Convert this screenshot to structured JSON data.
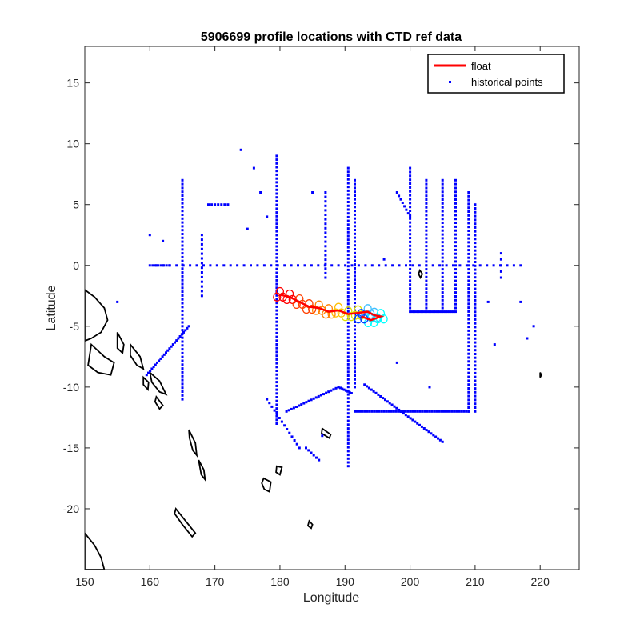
{
  "chart_data": {
    "type": "scatter",
    "title": "5906699 profile locations with CTD ref data",
    "xlabel": "Longitude",
    "ylabel": "Latitude",
    "xlim": [
      150,
      226
    ],
    "ylim": [
      -25,
      18
    ],
    "xticks": [
      150,
      160,
      170,
      180,
      190,
      200,
      210,
      220
    ],
    "yticks": [
      -20,
      -15,
      -10,
      -5,
      0,
      5,
      10,
      15
    ],
    "legend": {
      "placement": "top-right",
      "entries": [
        {
          "label": "float",
          "color": "#ff0000",
          "style": "line"
        },
        {
          "label": "historical points",
          "color": "#0000ff",
          "style": "dot"
        }
      ]
    },
    "colors": {
      "float": "#ff0000",
      "historical": "#0000ff",
      "coast": "#000000"
    },
    "series": [
      {
        "name": "float",
        "type": "line",
        "points": [
          [
            180,
            -2.4
          ],
          [
            181.5,
            -2.6
          ],
          [
            183,
            -3.0
          ],
          [
            184.5,
            -3.4
          ],
          [
            186,
            -3.5
          ],
          [
            187.5,
            -3.8
          ],
          [
            189,
            -3.7
          ],
          [
            190.5,
            -4.0
          ],
          [
            192,
            -3.9
          ],
          [
            193.5,
            -3.8
          ],
          [
            194.5,
            -4.1
          ],
          [
            195.5,
            -4.2
          ],
          [
            194,
            -4.5
          ],
          [
            192.5,
            -4.2
          ]
        ]
      },
      {
        "name": "historical points",
        "type": "scatter",
        "lines": [
          {
            "from": [
              161,
              0
            ],
            "to": [
              217,
              0
            ],
            "n": 55
          },
          {
            "from": [
              179.5,
              -13
            ],
            "to": [
              179.5,
              9
            ],
            "n": 72
          },
          {
            "from": [
              190.5,
              -16.5
            ],
            "to": [
              190.5,
              8
            ],
            "n": 80
          },
          {
            "from": [
              191.5,
              -10
            ],
            "to": [
              191.5,
              7
            ],
            "n": 55
          },
          {
            "from": [
              165,
              -11
            ],
            "to": [
              165,
              7
            ],
            "n": 58
          },
          {
            "from": [
              209,
              -12
            ],
            "to": [
              209,
              6
            ],
            "n": 58
          },
          {
            "from": [
              210,
              -12
            ],
            "to": [
              210,
              5
            ],
            "n": 55
          },
          {
            "from": [
              205,
              -3.5
            ],
            "to": [
              205,
              7
            ],
            "n": 34
          },
          {
            "from": [
              207,
              -3.5
            ],
            "to": [
              207,
              7
            ],
            "n": 34
          },
          {
            "from": [
              200,
              -3.5
            ],
            "to": [
              200,
              8
            ],
            "n": 37
          },
          {
            "from": [
              202.5,
              -3.5
            ],
            "to": [
              202.5,
              7
            ],
            "n": 34
          },
          {
            "from": [
              200,
              -3.8
            ],
            "to": [
              207,
              -3.8
            ],
            "n": 24
          },
          {
            "from": [
              191.5,
              -12
            ],
            "to": [
              209,
              -12
            ],
            "n": 48
          },
          {
            "from": [
              181,
              -12
            ],
            "to": [
              189,
              -10
            ],
            "n": 22
          },
          {
            "from": [
              189,
              -10
            ],
            "to": [
              191,
              -10.5
            ],
            "n": 8
          },
          {
            "from": [
              193,
              -9.8
            ],
            "to": [
              205,
              -14.5
            ],
            "n": 35
          },
          {
            "from": [
              178,
              -11
            ],
            "to": [
              183,
              -15
            ],
            "n": 14
          },
          {
            "from": [
              159.5,
              -9
            ],
            "to": [
              166,
              -5
            ],
            "n": 25
          },
          {
            "from": [
              184,
              -15
            ],
            "to": [
              186,
              -16
            ],
            "n": 6
          },
          {
            "from": [
              187,
              6
            ],
            "to": [
              187,
              -1
            ],
            "n": 20
          },
          {
            "from": [
              169,
              5
            ],
            "to": [
              172,
              5
            ],
            "n": 7
          },
          {
            "from": [
              198,
              6
            ],
            "to": [
              200,
              4
            ],
            "n": 8
          },
          {
            "from": [
              160,
              0
            ],
            "to": [
              163,
              0
            ],
            "n": 8
          },
          {
            "from": [
              168,
              -2.5
            ],
            "to": [
              168,
              2.5
            ],
            "n": 14
          },
          {
            "from": [
              214,
              -1
            ],
            "to": [
              214,
              1
            ],
            "n": 5
          }
        ],
        "extra_points": [
          [
            155,
            -3
          ],
          [
            160,
            2.5
          ],
          [
            162,
            2
          ],
          [
            174,
            9.5
          ],
          [
            176,
            8
          ],
          [
            175,
            3
          ],
          [
            177,
            6
          ],
          [
            178,
            4
          ],
          [
            185,
            6
          ],
          [
            186.5,
            -14
          ],
          [
            196,
            0.5
          ],
          [
            212,
            -3
          ],
          [
            213,
            -6.5
          ],
          [
            218,
            -6
          ],
          [
            219,
            -5
          ],
          [
            217,
            -3
          ],
          [
            203,
            -10
          ],
          [
            198,
            -8
          ]
        ]
      }
    ],
    "coast_outlines": [
      [
        [
          150,
          -2
        ],
        [
          151.5,
          -2.6
        ],
        [
          153,
          -3.5
        ],
        [
          153.5,
          -4.5
        ],
        [
          152.5,
          -5.5
        ],
        [
          151,
          -6
        ],
        [
          150,
          -6.2
        ]
      ],
      [
        [
          151,
          -6.5
        ],
        [
          153,
          -7.5
        ],
        [
          154.5,
          -8
        ],
        [
          154,
          -9
        ],
        [
          152,
          -8.8
        ],
        [
          150.5,
          -8.2
        ]
      ],
      [
        [
          155,
          -5.5
        ],
        [
          156,
          -6.5
        ],
        [
          155.8,
          -7.2
        ],
        [
          155,
          -6.8
        ]
      ],
      [
        [
          157,
          -6.5
        ],
        [
          158.5,
          -7.5
        ],
        [
          159,
          -8.5
        ],
        [
          158,
          -8.2
        ],
        [
          157,
          -7.4
        ]
      ],
      [
        [
          160,
          -8.8
        ],
        [
          161.5,
          -9.5
        ],
        [
          162.5,
          -10.6
        ],
        [
          161.5,
          -10.4
        ],
        [
          160.3,
          -9.6
        ]
      ],
      [
        [
          159,
          -9.2
        ],
        [
          159.8,
          -9.6
        ],
        [
          159.7,
          -10.2
        ],
        [
          159,
          -9.8
        ]
      ],
      [
        [
          161,
          -10.8
        ],
        [
          162,
          -11.5
        ],
        [
          161.5,
          -11.8
        ],
        [
          160.8,
          -11.2
        ]
      ],
      [
        [
          166,
          -13.5
        ],
        [
          167,
          -14.6
        ],
        [
          167.2,
          -15.6
        ],
        [
          166.6,
          -15.2
        ],
        [
          166.1,
          -14.2
        ]
      ],
      [
        [
          167.5,
          -16
        ],
        [
          168.3,
          -16.8
        ],
        [
          168.5,
          -17.6
        ],
        [
          167.9,
          -17.2
        ]
      ],
      [
        [
          164,
          -20
        ],
        [
          165.5,
          -21
        ],
        [
          167,
          -22
        ],
        [
          166.5,
          -22.3
        ],
        [
          165,
          -21.3
        ],
        [
          163.8,
          -20.4
        ]
      ],
      [
        [
          150,
          -22
        ],
        [
          151.5,
          -23
        ],
        [
          152.5,
          -24
        ],
        [
          153,
          -25
        ],
        [
          150,
          -25
        ]
      ],
      [
        [
          177.5,
          -17.5
        ],
        [
          178.6,
          -17.8
        ],
        [
          178.4,
          -18.6
        ],
        [
          177.6,
          -18.4
        ],
        [
          177.2,
          -17.9
        ]
      ],
      [
        [
          179.5,
          -16.5
        ],
        [
          180.3,
          -16.6
        ],
        [
          180,
          -17.2
        ],
        [
          179.4,
          -17
        ]
      ],
      [
        [
          186.5,
          -13.4
        ],
        [
          187.8,
          -13.9
        ],
        [
          187.6,
          -14.2
        ],
        [
          186.4,
          -13.8
        ]
      ],
      [
        [
          184.5,
          -21
        ],
        [
          185,
          -21.3
        ],
        [
          184.8,
          -21.6
        ],
        [
          184.3,
          -21.4
        ]
      ],
      [
        [
          201.5,
          -0.4
        ],
        [
          201.9,
          -0.7
        ],
        [
          201.6,
          -1
        ],
        [
          201.3,
          -0.7
        ]
      ],
      [
        [
          220,
          -8.8
        ],
        [
          220.2,
          -9
        ],
        [
          220,
          -9.2
        ]
      ]
    ]
  }
}
